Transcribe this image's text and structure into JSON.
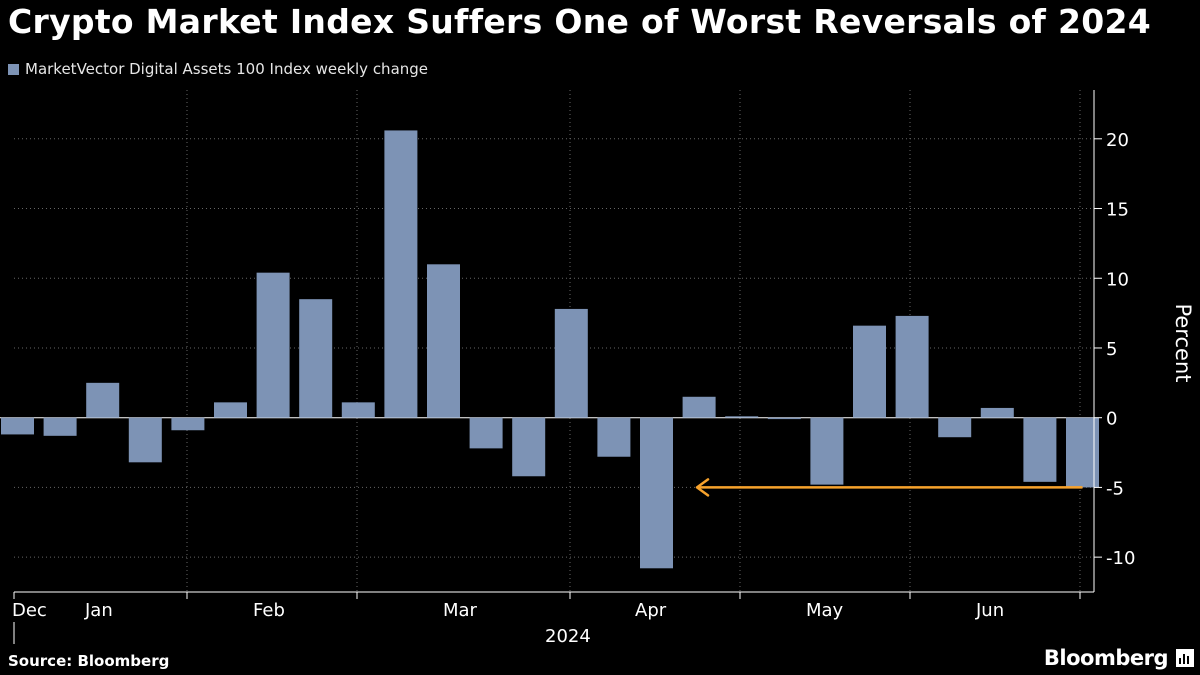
{
  "chart_data": {
    "type": "bar",
    "title": "Crypto Market Index Suffers One of Worst Reversals of 2024",
    "legend": "MarketVector Digital Assets 100 Index weekly change",
    "series": [
      {
        "name": "MarketVector Digital Assets 100 Index weekly change",
        "values": [
          -1.2,
          -1.3,
          2.5,
          -3.2,
          -0.9,
          1.1,
          10.4,
          8.5,
          1.1,
          20.6,
          11.0,
          -2.2,
          -4.2,
          7.8,
          -2.8,
          -10.8,
          1.5,
          0.1,
          -0.1,
          -4.8,
          6.6,
          7.3,
          -1.4,
          0.7,
          -4.6,
          -5.0
        ]
      }
    ],
    "ylabel": "Percent",
    "ylim": [
      -12.5,
      23.5
    ],
    "yticks": [
      20,
      15,
      10,
      5,
      0,
      -5,
      -10
    ],
    "xlabel": "2024",
    "month_labels": [
      "Dec",
      "Jan",
      "Feb",
      "Mar",
      "Apr",
      "May",
      "Jun"
    ],
    "colors": {
      "bar": "#7d93b5",
      "arrow": "#f7a22c",
      "grid": "#666666"
    },
    "annotation": "arrow pointing left at -5 from final week"
  },
  "footer": {
    "source": "Source: Bloomberg",
    "brand": "Bloomberg"
  }
}
